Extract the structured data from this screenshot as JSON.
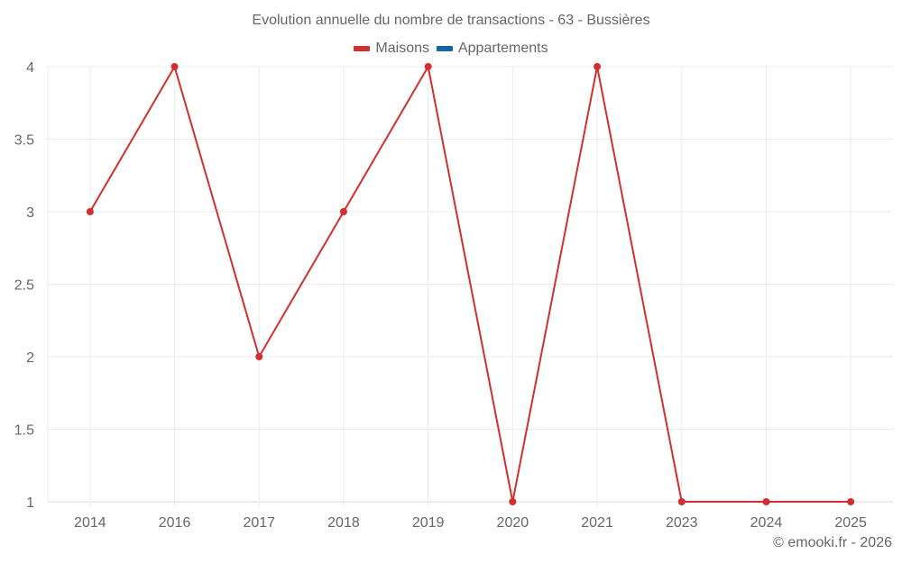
{
  "title": "Evolution annuelle du nombre de transactions - 63 - Bussières",
  "legend": {
    "items": [
      {
        "label": "Maisons",
        "color": "#d32f2f"
      },
      {
        "label": "Appartements",
        "color": "#1565a0"
      }
    ]
  },
  "credit": "© emooki.fr - 2026",
  "colors": {
    "grid": "#ebebeb",
    "axis": "#d9d9d9",
    "text": "#666666",
    "maisons": "#d32f2f",
    "appartements": "#1565a0"
  },
  "chart_data": {
    "type": "line",
    "title": "Evolution annuelle du nombre de transactions - 63 - Bussières",
    "xlabel": "",
    "ylabel": "",
    "categories": [
      "2014",
      "2016",
      "2017",
      "2018",
      "2019",
      "2020",
      "2021",
      "2023",
      "2024",
      "2025"
    ],
    "series": [
      {
        "name": "Maisons",
        "color": "#d32f2f",
        "values": [
          3,
          4,
          2,
          3,
          4,
          1,
          4,
          1,
          1,
          1
        ]
      },
      {
        "name": "Appartements",
        "color": "#1565a0",
        "values": []
      }
    ],
    "ylim": [
      1,
      4
    ],
    "yticks": [
      "1",
      "1.5",
      "2",
      "2.5",
      "3",
      "3.5",
      "4"
    ],
    "grid": true,
    "legend_position": "top"
  }
}
